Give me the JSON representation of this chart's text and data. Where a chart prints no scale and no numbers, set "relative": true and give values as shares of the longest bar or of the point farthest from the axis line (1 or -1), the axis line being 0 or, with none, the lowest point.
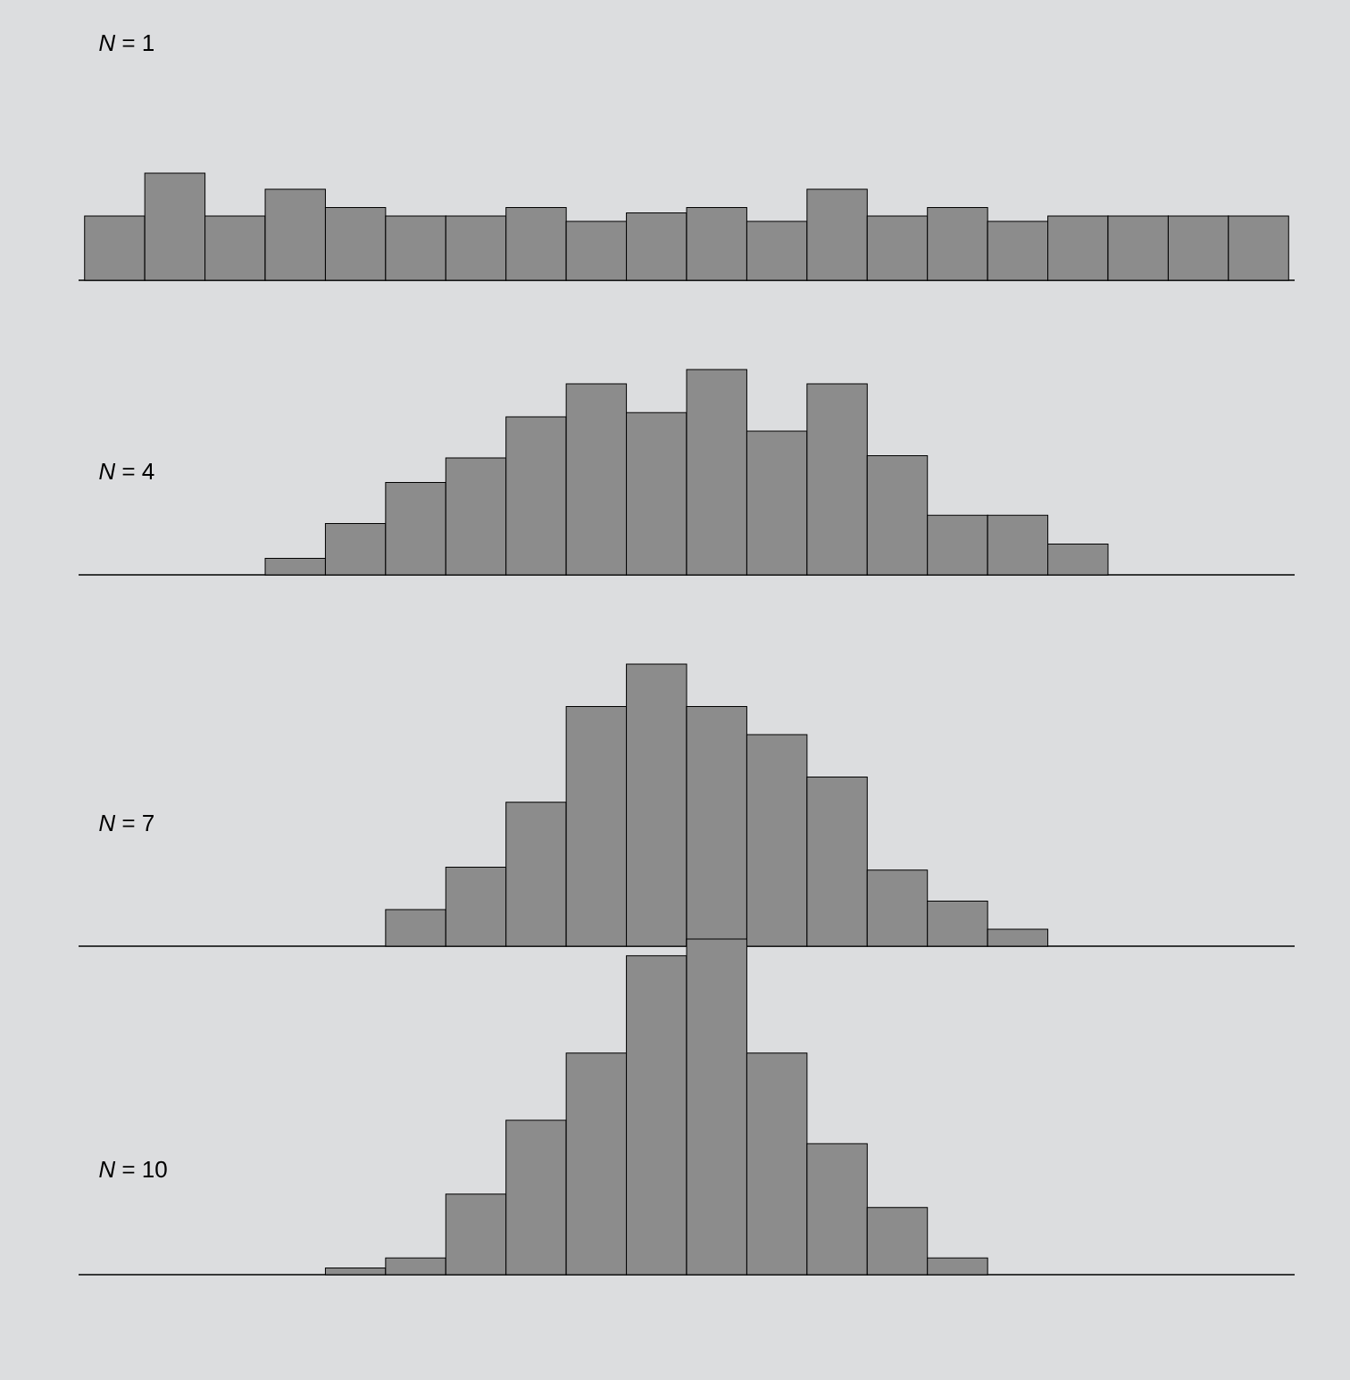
{
  "chart_data": [
    {
      "type": "bar",
      "relative": true,
      "title": "*N* = 1",
      "color": "#8c8c8c",
      "categories": [
        null,
        null,
        null,
        null,
        null,
        null,
        null,
        null,
        null,
        null,
        null,
        null,
        null,
        null,
        null,
        null,
        null,
        null,
        null,
        null
      ],
      "values": [
        0.6,
        1,
        0.6,
        0.85,
        0.68,
        0.6,
        0.6,
        0.68,
        0.55,
        0.63,
        0.68,
        0.55,
        0.85,
        0.6,
        0.68,
        0.55,
        0.6,
        0.6,
        0.6,
        0.6
      ]
    },
    {
      "type": "bar",
      "relative": true,
      "title": "*N* = 4",
      "color": "#8c8c8c",
      "categories": [
        null,
        null,
        null,
        null,
        null,
        null,
        null,
        null,
        null,
        null,
        null,
        null,
        null,
        null,
        null,
        null,
        null,
        null,
        null,
        null
      ],
      "values": [
        null,
        null,
        null,
        0.08,
        0.25,
        0.45,
        0.57,
        0.77,
        0.93,
        0.79,
        1,
        0.7,
        0.93,
        0.58,
        0.29,
        0.29,
        0.15,
        null,
        null,
        null
      ]
    },
    {
      "type": "bar",
      "relative": true,
      "title": "*N* = 7",
      "color": "#8c8c8c",
      "categories": [
        null,
        null,
        null,
        null,
        null,
        null,
        null,
        null,
        null,
        null,
        null,
        null,
        null,
        null,
        null,
        null,
        null,
        null,
        null,
        null
      ],
      "values": [
        null,
        null,
        null,
        null,
        null,
        0.13,
        0.28,
        0.51,
        0.85,
        1,
        0.85,
        0.75,
        0.6,
        0.27,
        0.16,
        0.06,
        null,
        null,
        null,
        null
      ]
    },
    {
      "type": "bar",
      "relative": true,
      "title": "*N* = 10",
      "color": "#8c8c8c",
      "categories": [
        null,
        null,
        null,
        null,
        null,
        null,
        null,
        null,
        null,
        null,
        null,
        null,
        null,
        null,
        null,
        null,
        null,
        null,
        null,
        null
      ],
      "values": [
        null,
        null,
        null,
        null,
        0.02,
        0.05,
        0.24,
        0.46,
        0.66,
        0.95,
        1,
        0.66,
        0.39,
        0.2,
        0.05,
        null,
        null,
        null,
        null,
        null
      ]
    }
  ]
}
